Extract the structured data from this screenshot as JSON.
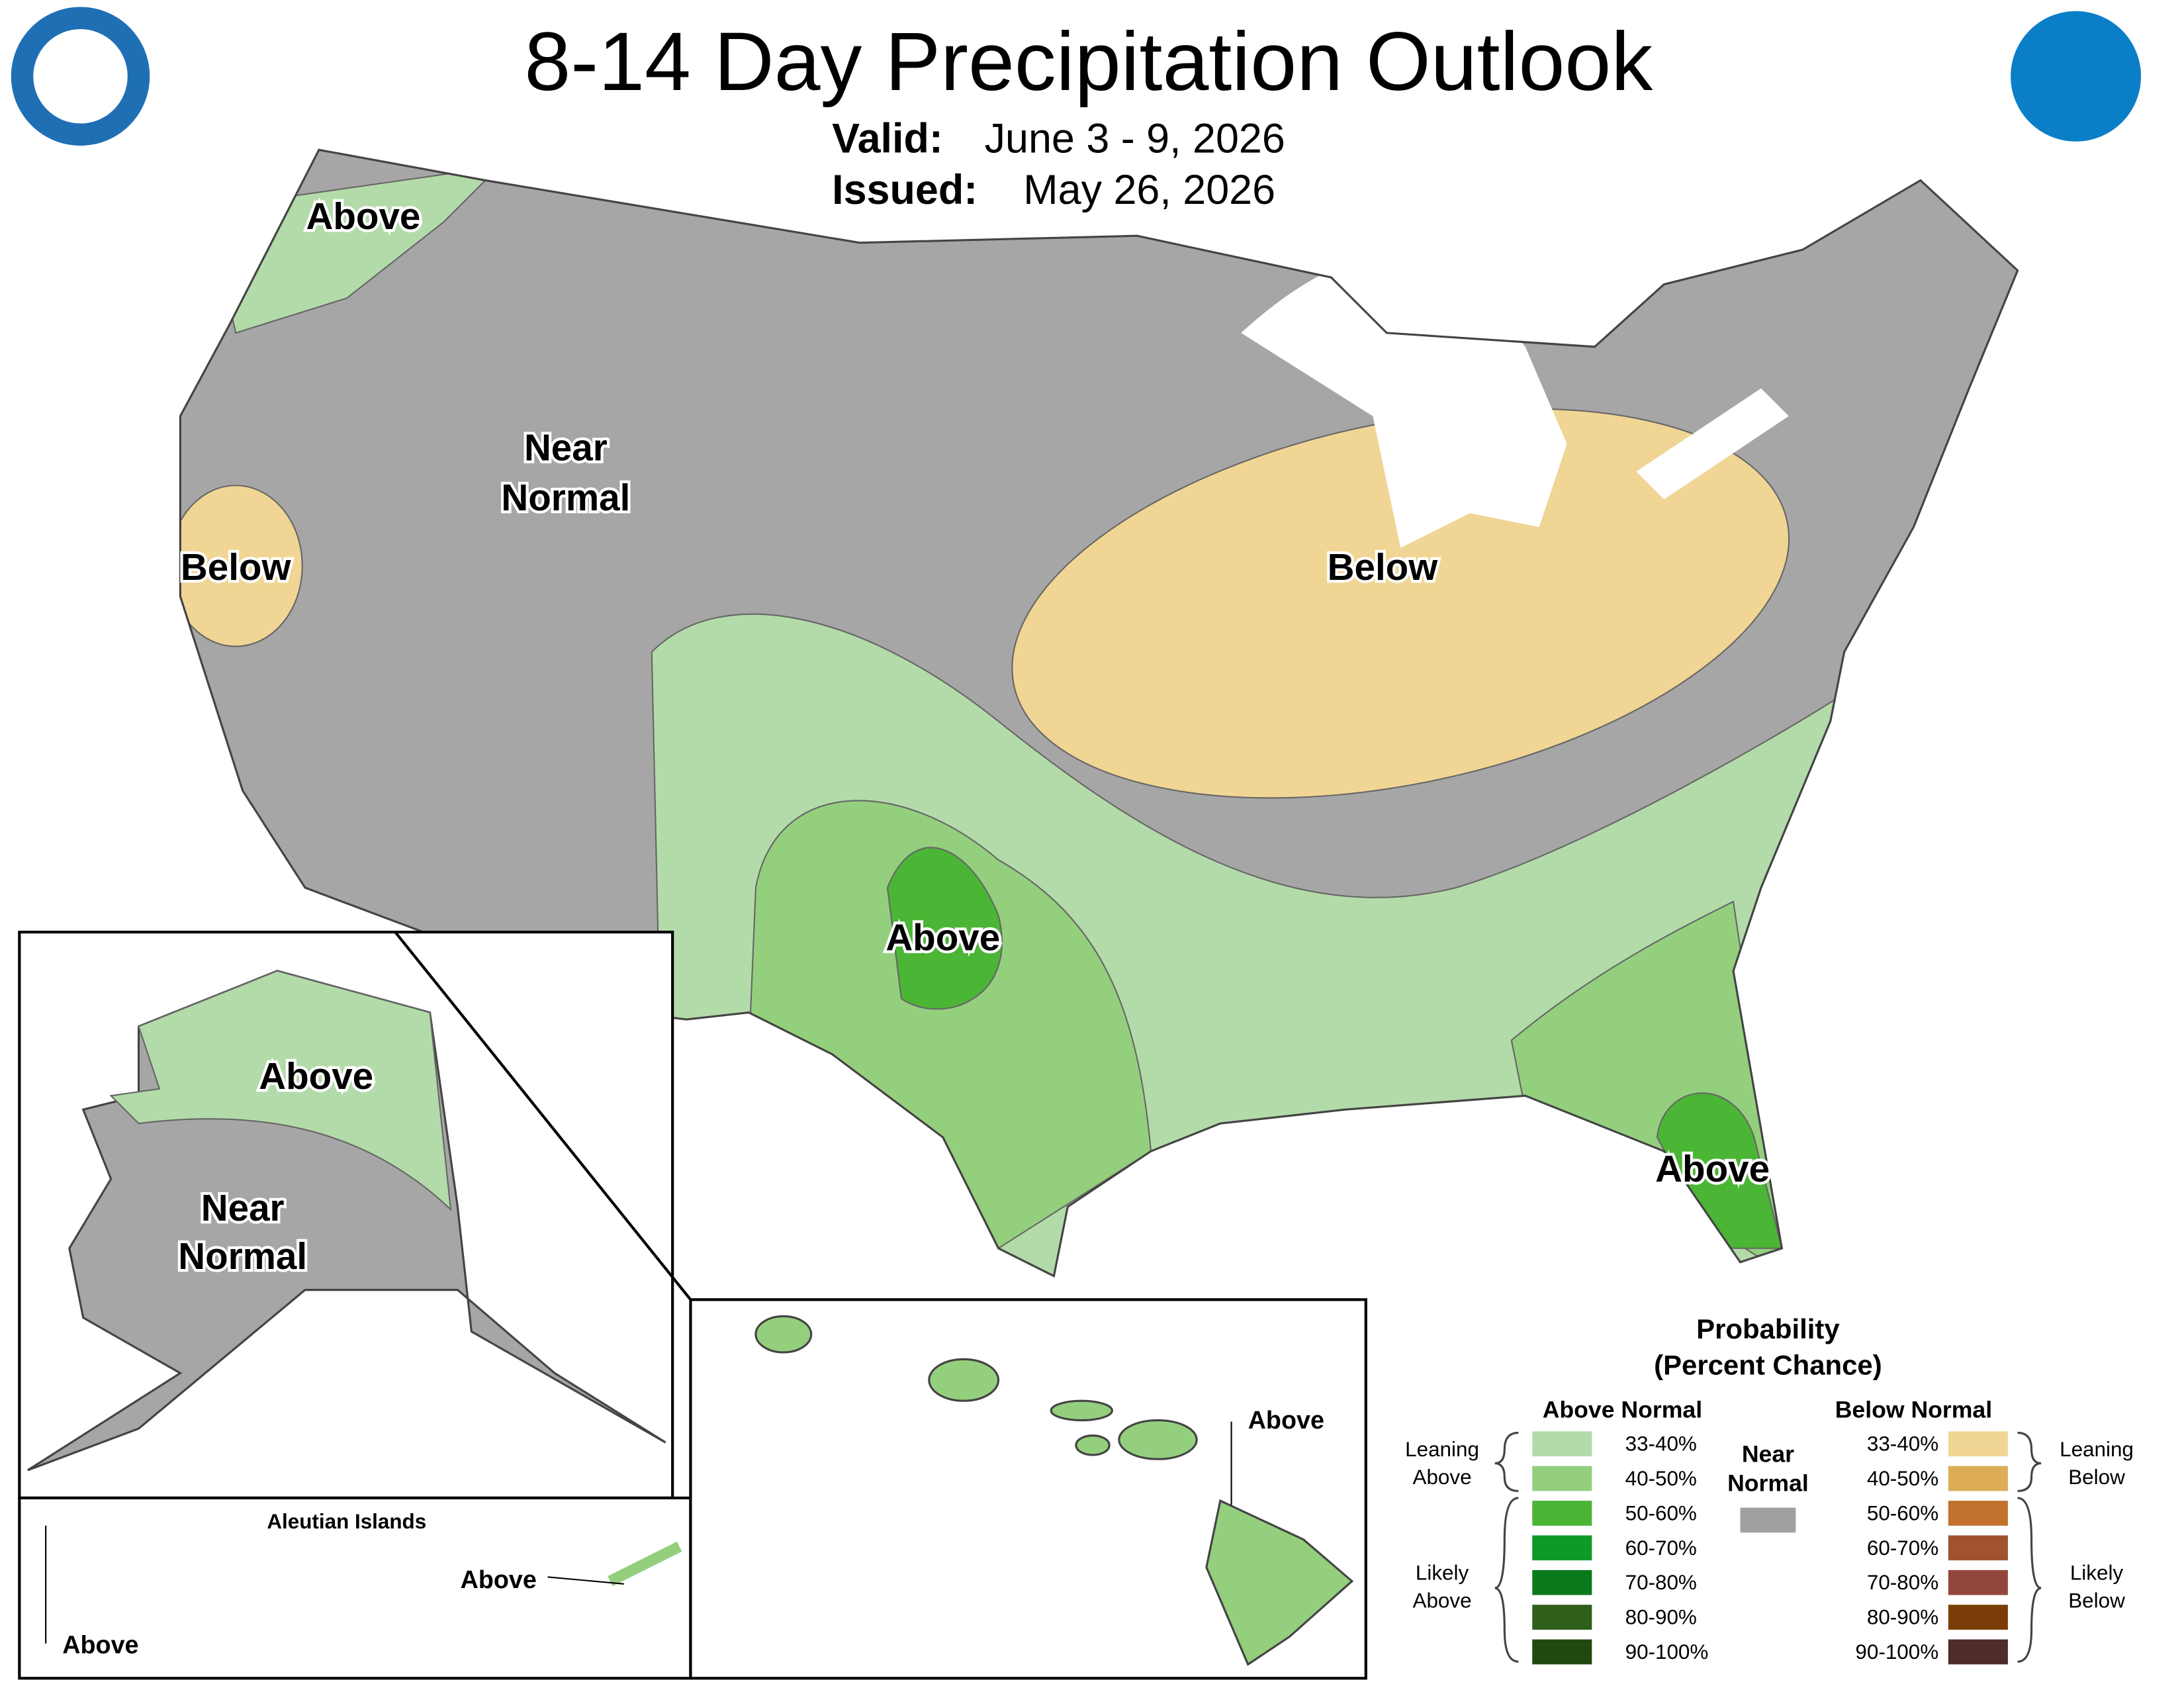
{
  "header": {
    "title": "8-14 Day Precipitation Outlook",
    "valid_label": "Valid:",
    "valid": "June 3 - 9, 2026",
    "issued_label": "Issued:",
    "issued": "May 26, 2026"
  },
  "map_labels": {
    "northwest": "Above",
    "great_basin": [
      "Near",
      "Normal"
    ],
    "california": "Below",
    "midwest": "Below",
    "southern_plains": "Above",
    "florida": "Above",
    "alaska_north": "Above",
    "alaska_south": [
      "Near",
      "Normal"
    ],
    "hawaii": "Above",
    "aleutian_title": "Aleutian Islands",
    "aleutian_east": "Above",
    "aleutian_west": "Above"
  },
  "legend": {
    "title": [
      "Probability",
      "(Percent Chance)"
    ],
    "above_heading": "Above Normal",
    "below_heading": "Below Normal",
    "near_heading": [
      "Near",
      "Normal"
    ],
    "near_color": "#a0a0a0",
    "leaning_above": [
      "Leaning",
      "Above"
    ],
    "likely_above": [
      "Likely",
      "Above"
    ],
    "leaning_below": [
      "Leaning",
      "Below"
    ],
    "likely_below": [
      "Likely",
      "Below"
    ],
    "above": [
      {
        "label": "33-40%",
        "color": "#b3dba9"
      },
      {
        "label": "40-50%",
        "color": "#94cf7e"
      },
      {
        "label": "50-60%",
        "color": "#4bb535"
      },
      {
        "label": "60-70%",
        "color": "#0e9a27"
      },
      {
        "label": "70-80%",
        "color": "#0b7a1b"
      },
      {
        "label": "80-90%",
        "color": "#2e5f1b"
      },
      {
        "label": "90-100%",
        "color": "#21490d"
      }
    ],
    "below": [
      {
        "label": "33-40%",
        "color": "#f0d594"
      },
      {
        "label": "40-50%",
        "color": "#dcad56"
      },
      {
        "label": "50-60%",
        "color": "#c2722d"
      },
      {
        "label": "60-70%",
        "color": "#a0532e"
      },
      {
        "label": "70-80%",
        "color": "#93473c"
      },
      {
        "label": "80-90%",
        "color": "#7a3d08"
      },
      {
        "label": "90-100%",
        "color": "#4e2c2c"
      }
    ]
  }
}
